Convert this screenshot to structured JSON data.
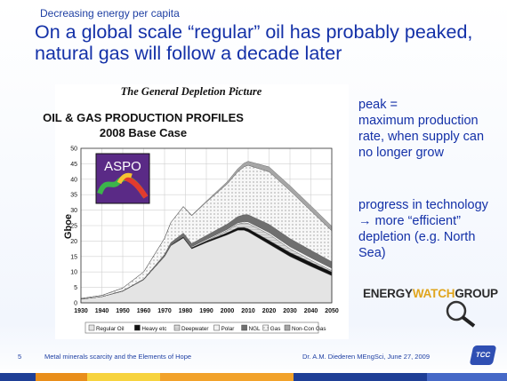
{
  "slide": {
    "kicker": "Decreasing energy per capita",
    "title_line1": "On a global scale “regular” oil has probably peaked,",
    "title_line2": "natural gas will follow a decade later"
  },
  "figure": {
    "subtitle": "The General Depletion Picture",
    "logo_text": "ASPO"
  },
  "notes": {
    "peak_line1": "peak =",
    "peak_line2": "maximum production",
    "peak_line3": "rate, when supply can",
    "peak_line4": "no longer grow",
    "tech_line1": "progress in technology",
    "tech_line2": "→ more “efficient”",
    "tech_line3": "depletion (e.g. North",
    "tech_line4": "Sea)"
  },
  "brand": {
    "logo_part1": "ENERGY",
    "logo_part2": "WATCH",
    "logo_part3": "GROUP"
  },
  "footer": {
    "page": "5",
    "left": "Metal minerals scarcity and the Elements of Hope",
    "right": "Dr. A.M. Diederen MEngSci, June 27, 2009",
    "badge": "TCC"
  },
  "colors": {
    "title_blue": "#1431a8",
    "regular_oil": "#e6e6e6",
    "heavy": "#111111",
    "deepwater": "#8a8a8a",
    "polar": "#f3f3f3",
    "ngl": "#6f6f6f",
    "gas": "#fbfbfb",
    "noncon_gas": "#a6a6a6"
  },
  "chart_data": {
    "type": "area",
    "title": "OIL & GAS PRODUCTION PROFILES",
    "subtitle": "2008 Base Case",
    "ylabel": "Gboe",
    "xlabel": "",
    "xlim": [
      1930,
      2050
    ],
    "ylim": [
      0,
      50
    ],
    "yticks": [
      0,
      5,
      10,
      15,
      20,
      25,
      30,
      35,
      40,
      45,
      50
    ],
    "xticks": [
      1930,
      1940,
      1950,
      1960,
      1970,
      1980,
      1990,
      2000,
      2010,
      2020,
      2030,
      2040,
      2050
    ],
    "grid": true,
    "legend_position": "bottom",
    "stacked": true,
    "x": [
      1930,
      1940,
      1950,
      1960,
      1970,
      1973,
      1979,
      1983,
      1990,
      2000,
      2005,
      2008,
      2010,
      2020,
      2030,
      2040,
      2050
    ],
    "series": [
      {
        "name": "Regular Oil",
        "values": [
          1.2,
          2.0,
          3.8,
          7.5,
          15.0,
          18.5,
          21.0,
          17.5,
          19.5,
          22.0,
          23.5,
          23.5,
          23.0,
          19.0,
          15.0,
          11.8,
          8.8
        ]
      },
      {
        "name": "Heavy etc",
        "values": [
          0,
          0,
          0,
          0,
          0.1,
          0.2,
          0.4,
          0.4,
          0.5,
          0.7,
          0.8,
          0.9,
          1.0,
          1.2,
          1.3,
          1.3,
          1.2
        ]
      },
      {
        "name": "Deepwater",
        "values": [
          0,
          0,
          0,
          0,
          0,
          0,
          0,
          0,
          0.1,
          0.7,
          1.2,
          1.5,
          1.7,
          2.0,
          1.2,
          0.7,
          0.4
        ]
      },
      {
        "name": "Polar",
        "values": [
          0,
          0,
          0,
          0,
          0,
          0,
          0.2,
          0.3,
          0.4,
          0.4,
          0.4,
          0.4,
          0.5,
          0.6,
          0.7,
          0.8,
          0.8
        ]
      },
      {
        "name": "NGL",
        "values": [
          0,
          0,
          0.1,
          0.2,
          0.6,
          0.8,
          1.0,
          1.0,
          1.3,
          1.7,
          2.0,
          2.2,
          2.3,
          2.6,
          2.6,
          2.4,
          2.1
        ]
      },
      {
        "name": "Gas",
        "values": [
          0.2,
          0.4,
          0.9,
          2.3,
          5.2,
          6.5,
          8.5,
          9.0,
          10.8,
          13.0,
          14.5,
          15.5,
          16.0,
          17.0,
          15.5,
          12.8,
          10.0
        ]
      },
      {
        "name": "Non-Con Gas",
        "values": [
          0,
          0,
          0,
          0,
          0,
          0,
          0.1,
          0.2,
          0.3,
          0.7,
          1.0,
          1.2,
          1.3,
          1.6,
          1.6,
          1.6,
          1.5
        ]
      }
    ]
  }
}
